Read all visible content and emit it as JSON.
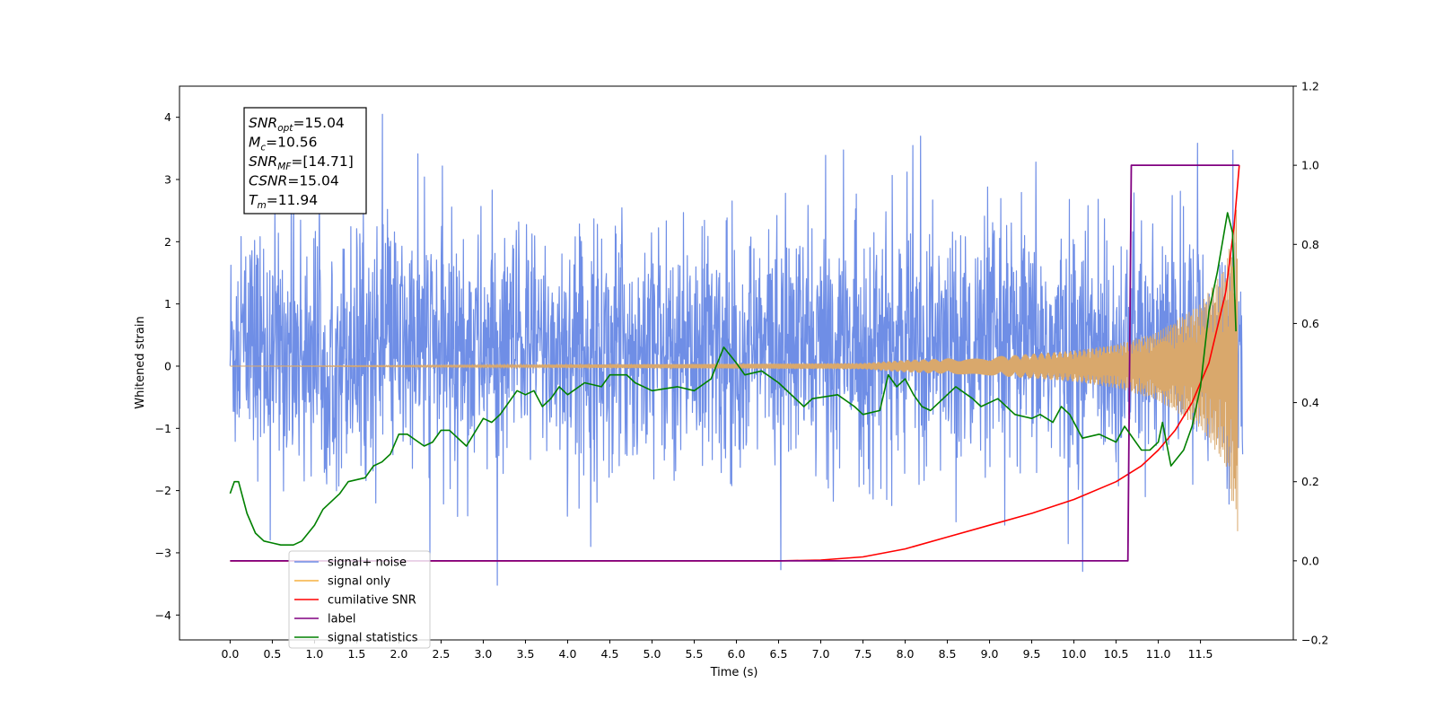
{
  "chart_data": {
    "type": "line",
    "x": {
      "label": "Time (s)",
      "range": [
        -0.6,
        12.6
      ],
      "ticks": [
        "0.0",
        "0.5",
        "1.0",
        "1.5",
        "2.0",
        "2.5",
        "3.0",
        "3.5",
        "4.0",
        "4.5",
        "5.0",
        "5.5",
        "6.0",
        "6.5",
        "7.0",
        "7.5",
        "8.0",
        "8.5",
        "9.0",
        "9.5",
        "10.0",
        "10.5",
        "11.0",
        "11.5"
      ]
    },
    "y_left": {
      "label": "Whitened strain",
      "range": [
        -4.4,
        4.5
      ],
      "ticks": [
        "−4",
        "−3",
        "−2",
        "−1",
        "0",
        "1",
        "2",
        "3",
        "4"
      ]
    },
    "y_right": {
      "label": "",
      "range": [
        -0.2,
        1.2
      ],
      "ticks": [
        "−0.2",
        "0.0",
        "0.2",
        "0.4",
        "0.6",
        "0.8",
        "1.0",
        "1.2"
      ]
    },
    "annotation": {
      "lines": [
        {
          "base": "SNR",
          "sub": "opt",
          "value": "=15.04"
        },
        {
          "base": "M",
          "sub": "c",
          "value": "=10.56"
        },
        {
          "base": "SNR",
          "sub": "MF",
          "value": "=[14.71]"
        },
        {
          "base": "CSNR",
          "sub": "",
          "value": "=15.04"
        },
        {
          "base": "T",
          "sub": "m",
          "value": "=11.94"
        }
      ]
    },
    "legend": {
      "position": "lower-left",
      "entries": [
        {
          "label": "signal+ noise",
          "color": "#6f8ee6"
        },
        {
          "label": "signal only",
          "color": "#f5b041"
        },
        {
          "label": "cumilative SNR",
          "color": "#ff0000"
        },
        {
          "label": "label",
          "color": "#800080"
        },
        {
          "label": "signal statistics",
          "color": "#008000"
        }
      ]
    },
    "series": [
      {
        "name": "signal+ noise",
        "axis": "left",
        "color": "#6f8ee6",
        "t_range": [
          0.0,
          12.0
        ],
        "amplitude_range": [
          -3.8,
          4.1
        ],
        "approx_band": [
          -2.0,
          2.7
        ]
      },
      {
        "name": "signal only",
        "axis": "left",
        "color": "#d9a86c",
        "t_range": [
          0.0,
          11.94
        ],
        "envelope_points": [
          [
            0,
            0.0
          ],
          [
            7.5,
            0.05
          ],
          [
            8,
            0.1
          ],
          [
            9,
            0.15
          ],
          [
            10,
            0.25
          ],
          [
            10.5,
            0.35
          ],
          [
            11,
            0.55
          ],
          [
            11.5,
            1.0
          ],
          [
            11.8,
            1.6
          ],
          [
            11.94,
            2.7
          ]
        ]
      },
      {
        "name": "cumilative SNR",
        "axis": "right",
        "color": "#ff0000",
        "points": [
          [
            0,
            0
          ],
          [
            6.5,
            0
          ],
          [
            7,
            0.002
          ],
          [
            7.5,
            0.01
          ],
          [
            8,
            0.03
          ],
          [
            8.5,
            0.06
          ],
          [
            9,
            0.09
          ],
          [
            9.5,
            0.12
          ],
          [
            10,
            0.155
          ],
          [
            10.5,
            0.2
          ],
          [
            10.8,
            0.24
          ],
          [
            11,
            0.28
          ],
          [
            11.2,
            0.33
          ],
          [
            11.4,
            0.4
          ],
          [
            11.6,
            0.5
          ],
          [
            11.8,
            0.68
          ],
          [
            11.9,
            0.85
          ],
          [
            11.96,
            1.0
          ]
        ]
      },
      {
        "name": "label",
        "axis": "right",
        "color": "#800080",
        "points": [
          [
            0,
            0
          ],
          [
            10.64,
            0
          ],
          [
            10.68,
            1.0
          ],
          [
            11.96,
            1.0
          ]
        ]
      },
      {
        "name": "signal statistics",
        "axis": "right",
        "color": "#008000",
        "points": [
          [
            0,
            0.17
          ],
          [
            0.05,
            0.2
          ],
          [
            0.1,
            0.2
          ],
          [
            0.2,
            0.12
          ],
          [
            0.3,
            0.07
          ],
          [
            0.4,
            0.05
          ],
          [
            0.5,
            0.045
          ],
          [
            0.6,
            0.04
          ],
          [
            0.75,
            0.04
          ],
          [
            0.85,
            0.05
          ],
          [
            1.0,
            0.09
          ],
          [
            1.1,
            0.13
          ],
          [
            1.3,
            0.17
          ],
          [
            1.4,
            0.2
          ],
          [
            1.6,
            0.21
          ],
          [
            1.7,
            0.24
          ],
          [
            1.8,
            0.25
          ],
          [
            1.9,
            0.27
          ],
          [
            2.0,
            0.32
          ],
          [
            2.1,
            0.32
          ],
          [
            2.3,
            0.29
          ],
          [
            2.4,
            0.3
          ],
          [
            2.5,
            0.33
          ],
          [
            2.6,
            0.33
          ],
          [
            2.8,
            0.29
          ],
          [
            3.0,
            0.36
          ],
          [
            3.1,
            0.35
          ],
          [
            3.2,
            0.37
          ],
          [
            3.4,
            0.43
          ],
          [
            3.5,
            0.42
          ],
          [
            3.6,
            0.43
          ],
          [
            3.7,
            0.39
          ],
          [
            3.8,
            0.41
          ],
          [
            3.9,
            0.44
          ],
          [
            4.0,
            0.42
          ],
          [
            4.2,
            0.45
          ],
          [
            4.4,
            0.44
          ],
          [
            4.5,
            0.47
          ],
          [
            4.7,
            0.47
          ],
          [
            4.8,
            0.45
          ],
          [
            5.0,
            0.43
          ],
          [
            5.3,
            0.44
          ],
          [
            5.5,
            0.43
          ],
          [
            5.7,
            0.46
          ],
          [
            5.85,
            0.54
          ],
          [
            6.0,
            0.5
          ],
          [
            6.1,
            0.47
          ],
          [
            6.3,
            0.48
          ],
          [
            6.5,
            0.45
          ],
          [
            6.8,
            0.39
          ],
          [
            6.9,
            0.41
          ],
          [
            7.2,
            0.42
          ],
          [
            7.4,
            0.39
          ],
          [
            7.5,
            0.37
          ],
          [
            7.7,
            0.38
          ],
          [
            7.8,
            0.47
          ],
          [
            7.9,
            0.44
          ],
          [
            8.0,
            0.46
          ],
          [
            8.1,
            0.42
          ],
          [
            8.2,
            0.39
          ],
          [
            8.3,
            0.38
          ],
          [
            8.6,
            0.44
          ],
          [
            8.8,
            0.41
          ],
          [
            8.9,
            0.39
          ],
          [
            9.1,
            0.41
          ],
          [
            9.3,
            0.37
          ],
          [
            9.5,
            0.36
          ],
          [
            9.6,
            0.37
          ],
          [
            9.75,
            0.35
          ],
          [
            9.85,
            0.39
          ],
          [
            9.95,
            0.37
          ],
          [
            10.1,
            0.31
          ],
          [
            10.3,
            0.32
          ],
          [
            10.5,
            0.3
          ],
          [
            10.6,
            0.34
          ],
          [
            10.8,
            0.28
          ],
          [
            10.9,
            0.28
          ],
          [
            11.0,
            0.3
          ],
          [
            11.05,
            0.35
          ],
          [
            11.15,
            0.24
          ],
          [
            11.3,
            0.28
          ],
          [
            11.4,
            0.34
          ],
          [
            11.5,
            0.44
          ],
          [
            11.6,
            0.63
          ],
          [
            11.7,
            0.73
          ],
          [
            11.82,
            0.88
          ],
          [
            11.88,
            0.83
          ],
          [
            11.92,
            0.58
          ]
        ]
      }
    ]
  }
}
